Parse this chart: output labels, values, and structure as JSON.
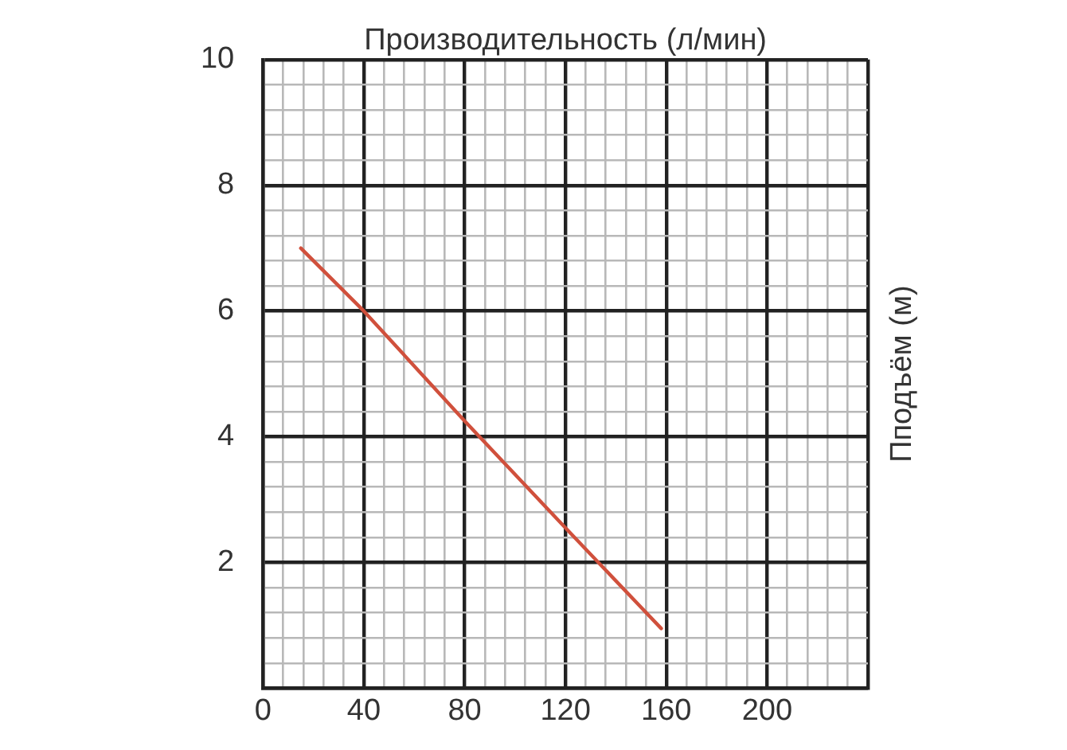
{
  "chart_data": {
    "type": "line",
    "xlabel": "Производительность (л/мин)",
    "ylabel": "Пподъём (м)",
    "series": [
      {
        "color": "#d0503c",
        "x": [
          15,
          40,
          80,
          120,
          158
        ],
        "values": [
          7.0,
          6.0,
          4.25,
          2.55,
          0.95
        ]
      }
    ],
    "xlim": [
      0,
      240
    ],
    "xticks": [
      0,
      {
        "value": 8,
        "label": null
      },
      {
        "value": 16,
        "label": null
      },
      {
        "value": 24,
        "label": null
      },
      {
        "value": 32,
        "label": null
      },
      40,
      {
        "value": 48,
        "label": null
      },
      {
        "value": 56,
        "label": null
      },
      {
        "value": 64,
        "label": null
      },
      {
        "value": 72,
        "label": null
      },
      80,
      {
        "value": 88,
        "label": null
      },
      {
        "value": 96,
        "label": null
      },
      {
        "value": 104,
        "label": null
      },
      {
        "value": 112,
        "label": null
      },
      120,
      {
        "value": 128,
        "label": null
      },
      {
        "value": 136,
        "label": null
      },
      {
        "value": 144,
        "label": null
      },
      {
        "value": 152,
        "label": null
      },
      160,
      {
        "value": 168,
        "label": null
      },
      {
        "value": 176,
        "label": null
      },
      {
        "value": 184,
        "label": null
      },
      {
        "value": 192,
        "label": null
      },
      200,
      {
        "value": 208,
        "label": null
      },
      {
        "value": 216,
        "label": null
      },
      {
        "value": 224,
        "label": null
      },
      {
        "value": 232,
        "label": null
      },
      {
        "value": 240,
        "label": null
      }
    ],
    "ylim": [
      0,
      10
    ],
    "yticks": [
      {
        "value": 0,
        "label": null
      },
      {
        "value": 0.4,
        "label": null
      },
      {
        "value": 0.8,
        "label": null
      },
      {
        "value": 1.2,
        "label": null
      },
      {
        "value": 1.6,
        "label": null
      },
      2,
      {
        "value": 2.4,
        "label": null
      },
      {
        "value": 2.8,
        "label": null
      },
      {
        "value": 3.2,
        "label": null
      },
      {
        "value": 3.6,
        "label": null
      },
      4,
      {
        "value": 4.4,
        "label": null
      },
      {
        "value": 4.8,
        "label": null
      },
      {
        "value": 5.2,
        "label": null
      },
      {
        "value": 5.6,
        "label": null
      },
      6,
      {
        "value": 6.4,
        "label": null
      },
      {
        "value": 6.8,
        "label": null
      },
      {
        "value": 7.2,
        "label": null
      },
      {
        "value": 7.6,
        "label": null
      },
      8,
      {
        "value": 8.4,
        "label": null
      },
      {
        "value": 8.8,
        "label": null
      },
      {
        "value": 9.2,
        "label": null
      },
      {
        "value": 9.6,
        "label": null
      },
      10
    ],
    "grid": true,
    "legend": false,
    "marker": "none",
    "line_style": "solid"
  }
}
